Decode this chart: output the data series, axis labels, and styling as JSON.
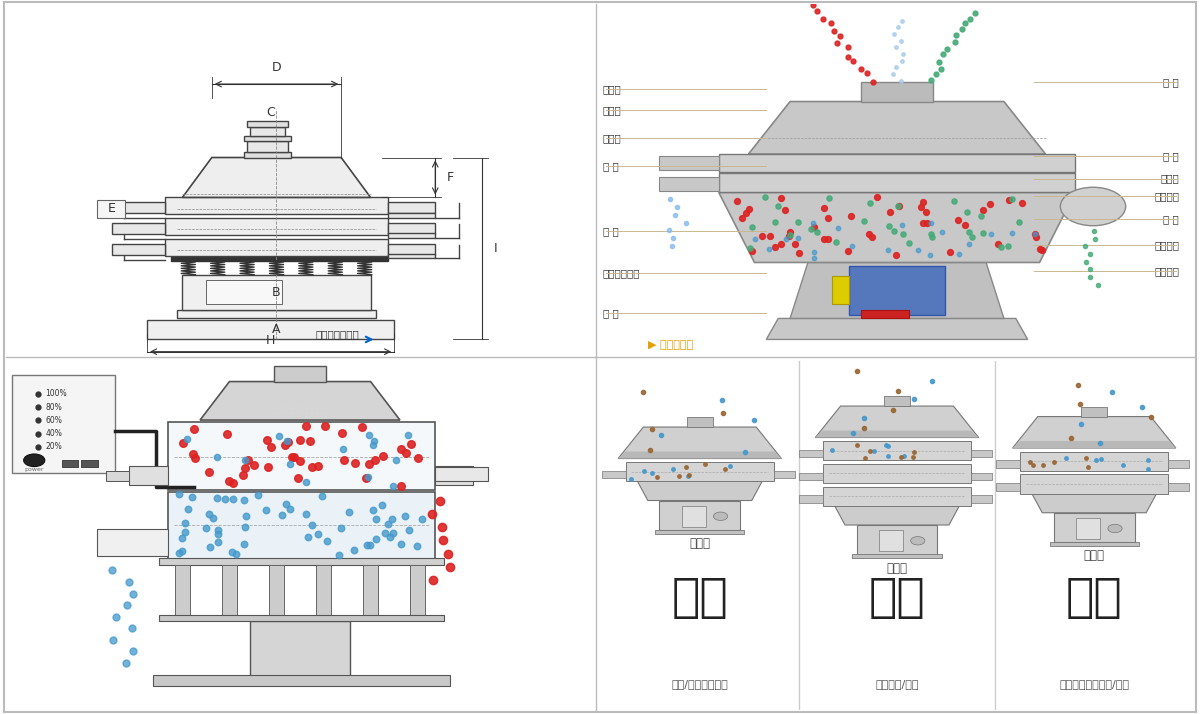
{
  "bg_color": "#ffffff",
  "border_color": "#cccccc",
  "top_left": {
    "footer_text": "外形尺寸示意圖",
    "arrow_color": "#0077cc",
    "line_color": "#444444",
    "dim_color": "#333333"
  },
  "top_right": {
    "left_labels": [
      "進料口",
      "防塵蓋",
      "出料口",
      "束 環",
      "彈 簧",
      "運輸固定螺栓",
      "機 座"
    ],
    "right_labels": [
      "篩 網",
      "網 架",
      "加重塊",
      "上部重錘",
      "篩 盤",
      "振動電机",
      "下部重錘"
    ],
    "footer_text": "結構示意圖",
    "arrow_color": "#e8a000",
    "line_color": "#c8b890"
  },
  "bottom_left": {
    "ctrl_labels": [
      "100%",
      "80%",
      "60%",
      "40%",
      "20%"
    ],
    "ctrl_title": "power"
  },
  "bottom_right": {
    "section_titles": [
      "分级",
      "过滤",
      "除杂"
    ],
    "section_types": [
      "单层式",
      "三层式",
      "双层式"
    ],
    "section_subtitles": [
      "颗粒/粉末准确分级",
      "去除异物/结块",
      "去除液体中的颗粒/异物"
    ]
  },
  "red": "#dd2222",
  "blue": "#4499cc",
  "green": "#44aa77",
  "brown": "#996633",
  "divider": "#cccccc"
}
